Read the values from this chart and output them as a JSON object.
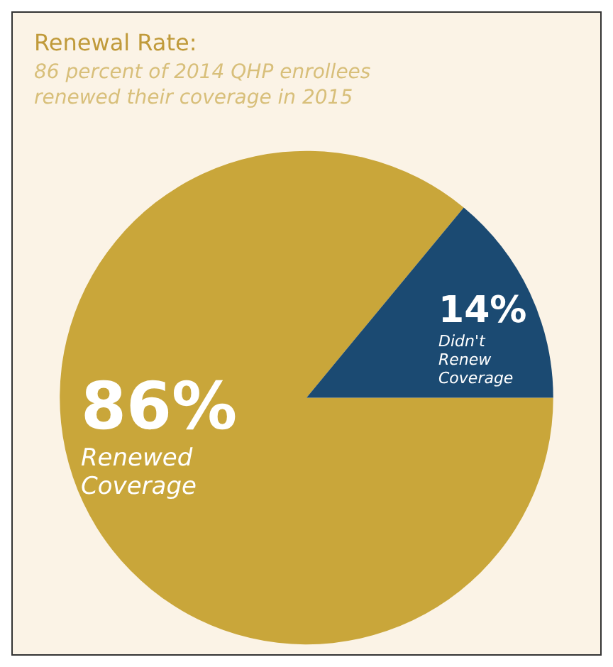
{
  "chart_data": {
    "type": "pie",
    "title": "Renewal Rate:",
    "subtitle": "86 percent of 2014 QHP enrollees renewed their coverage in 2015",
    "categories": [
      "Renewed Coverage",
      "Didn't Renew Coverage"
    ],
    "values": [
      86,
      14
    ],
    "colors": [
      "#c9a63a",
      "#1b4a72"
    ],
    "value_labels": [
      "86%",
      "14%"
    ],
    "legend": false
  }
}
